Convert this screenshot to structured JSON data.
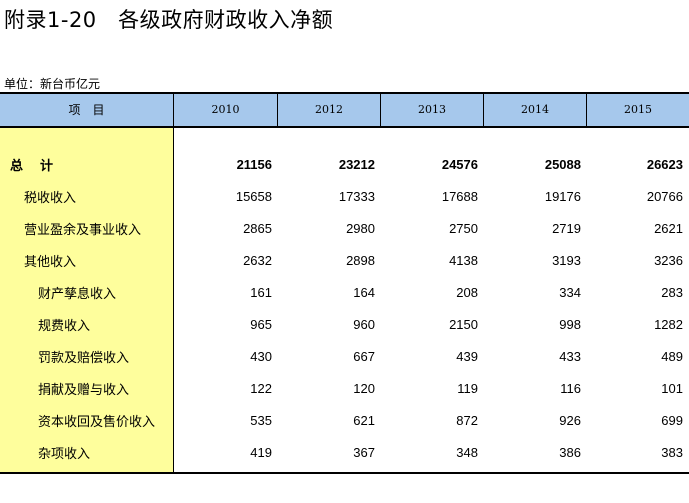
{
  "title": "附录1-20　各级政府财政收入净额",
  "unit": "单位：新台币亿元",
  "columns": [
    "项　目",
    "2010",
    "2012",
    "2013",
    "2014",
    "2015"
  ],
  "rows": [
    {
      "label": "总　计",
      "level": 0,
      "values": [
        "21156",
        "23212",
        "24576",
        "25088",
        "26623"
      ]
    },
    {
      "label": "税收收入",
      "level": 1,
      "values": [
        "15658",
        "17333",
        "17688",
        "19176",
        "20766"
      ]
    },
    {
      "label": "营业盈余及事业收入",
      "level": 1,
      "values": [
        "2865",
        "2980",
        "2750",
        "2719",
        "2621"
      ]
    },
    {
      "label": "其他收入",
      "level": 1,
      "values": [
        "2632",
        "2898",
        "4138",
        "3193",
        "3236"
      ]
    },
    {
      "label": "财产孳息收入",
      "level": 2,
      "values": [
        "161",
        "164",
        "208",
        "334",
        "283"
      ]
    },
    {
      "label": "规费收入",
      "level": 2,
      "values": [
        "965",
        "960",
        "2150",
        "998",
        "1282"
      ]
    },
    {
      "label": "罚款及赔偿收入",
      "level": 2,
      "values": [
        "430",
        "667",
        "439",
        "433",
        "489"
      ]
    },
    {
      "label": "捐献及赠与收入",
      "level": 2,
      "values": [
        "122",
        "120",
        "119",
        "116",
        "101"
      ]
    },
    {
      "label": "资本收回及售价收入",
      "level": 2,
      "values": [
        "535",
        "621",
        "872",
        "926",
        "699"
      ]
    },
    {
      "label": "杂项收入",
      "level": 2,
      "values": [
        "419",
        "367",
        "348",
        "386",
        "383"
      ]
    }
  ]
}
